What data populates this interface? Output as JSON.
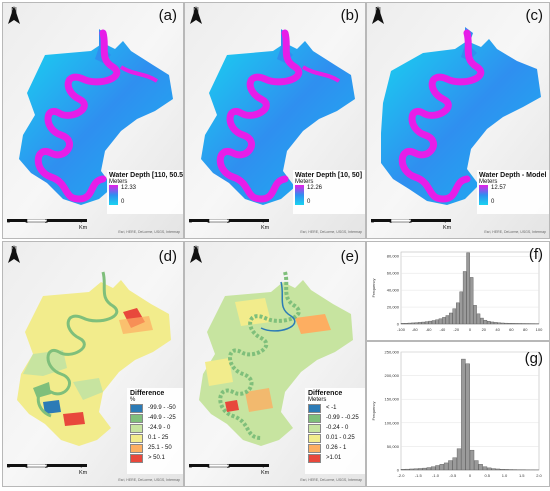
{
  "panels": {
    "a": {
      "label": "(a)",
      "legend_title": "Water Depth [110, 50.5]",
      "unit": "Meters",
      "max": "12.33",
      "min": "0"
    },
    "b": {
      "label": "(b)",
      "legend_title": "Water Depth [10, 50]",
      "unit": "Meters",
      "max": "12.26",
      "min": "0"
    },
    "c": {
      "label": "(c)",
      "legend_title": "Water Depth - Model",
      "unit": "Meters",
      "max": "12.57",
      "min": "0"
    },
    "d": {
      "label": "(d)",
      "legend_title": "Difference",
      "unit": "%",
      "classes": [
        {
          "text": "-99.9 - -50",
          "color": "#2c7bb6"
        },
        {
          "text": "-49.9 - -25",
          "color": "#7fbf7b"
        },
        {
          "text": "-24.9 - 0",
          "color": "#c7e4a0"
        },
        {
          "text": "0.1 - 25",
          "color": "#f2ec8c"
        },
        {
          "text": "25.1 - 50",
          "color": "#fdae61"
        },
        {
          "text": "> 50.1",
          "color": "#e8483c"
        }
      ]
    },
    "e": {
      "label": "(e)",
      "legend_title": "Difference",
      "unit": "Meters",
      "classes": [
        {
          "text": "< -1",
          "color": "#2c7bb6"
        },
        {
          "text": "-0.99 - -0.25",
          "color": "#7fbf7b"
        },
        {
          "text": "-0.24 - 0",
          "color": "#c7e4a0"
        },
        {
          "text": "0.01 - 0.25",
          "color": "#f2ec8c"
        },
        {
          "text": "0.26 - 1",
          "color": "#fdae61"
        },
        {
          "text": ">1.01",
          "color": "#e8483c"
        }
      ]
    },
    "f": {
      "label": "(f)"
    },
    "g": {
      "label": "(g)"
    }
  },
  "north_label": "N",
  "scale_bar": {
    "ticks": [
      "0",
      "1",
      "2",
      "4 Km"
    ]
  },
  "credit_text": "Esri, HERE, DeLorme, USGS, Intermap",
  "colors": {
    "depth_low": "#19d3f0",
    "depth_mid": "#2f8ff0",
    "depth_high": "#e61ee8",
    "bar": "#9a9a9a"
  },
  "chart_data": [
    {
      "type": "bar",
      "ylabel": "Frequency",
      "x_ticks": [
        "-100",
        "-80",
        "-60",
        "-40",
        "-20",
        "0",
        "20",
        "40",
        "60",
        "80",
        "100"
      ],
      "y_ticks": [
        "0",
        "20,000",
        "40,000",
        "60,000",
        "80,000"
      ],
      "xlim": [
        -100,
        100
      ],
      "ylim": [
        0,
        85000
      ],
      "bin_width": 5,
      "bin_starts": [
        -100,
        -95,
        -90,
        -85,
        -80,
        -75,
        -70,
        -65,
        -60,
        -55,
        -50,
        -45,
        -40,
        -35,
        -30,
        -25,
        -20,
        -15,
        -10,
        -5,
        0,
        5,
        10,
        15,
        20,
        25,
        30,
        35,
        40,
        45,
        50,
        55,
        60,
        65,
        70,
        75,
        80,
        85,
        90,
        95
      ],
      "values": [
        800,
        900,
        1100,
        1300,
        1600,
        1900,
        2300,
        2800,
        3400,
        4100,
        5000,
        6200,
        7800,
        10000,
        13000,
        18000,
        25000,
        38000,
        62000,
        84000,
        55000,
        22000,
        12000,
        7000,
        4500,
        3200,
        2400,
        1900,
        1500,
        1200,
        1000,
        900,
        800,
        700,
        650,
        600,
        550,
        500,
        450,
        400
      ]
    },
    {
      "type": "bar",
      "ylabel": "Frequency",
      "x_ticks": [
        "-2.0",
        "-1.5",
        "-1.0",
        "-0.5",
        "0",
        "0.5",
        "1.0",
        "1.5",
        "2.0"
      ],
      "y_ticks": [
        "0",
        "50,000",
        "100,000",
        "150,000",
        "200,000",
        "250,000"
      ],
      "xlim": [
        -2,
        2
      ],
      "ylim": [
        0,
        250000
      ],
      "bin_width": 0.125,
      "bin_starts": [
        -2.0,
        -1.875,
        -1.75,
        -1.625,
        -1.5,
        -1.375,
        -1.25,
        -1.125,
        -1.0,
        -0.875,
        -0.75,
        -0.625,
        -0.5,
        -0.375,
        -0.25,
        -0.125,
        0,
        0.125,
        0.25,
        0.375,
        0.5,
        0.625,
        0.75,
        0.875,
        1.0,
        1.125,
        1.25,
        1.375,
        1.5,
        1.625,
        1.75,
        1.875
      ],
      "values": [
        1500,
        1800,
        2200,
        2600,
        3200,
        4000,
        5200,
        7000,
        9500,
        12000,
        15000,
        20000,
        26000,
        45000,
        235000,
        225000,
        42000,
        20000,
        12000,
        7000,
        4500,
        3000,
        2200,
        1700,
        1300,
        1000,
        800,
        650,
        500,
        400,
        350,
        300
      ]
    }
  ]
}
